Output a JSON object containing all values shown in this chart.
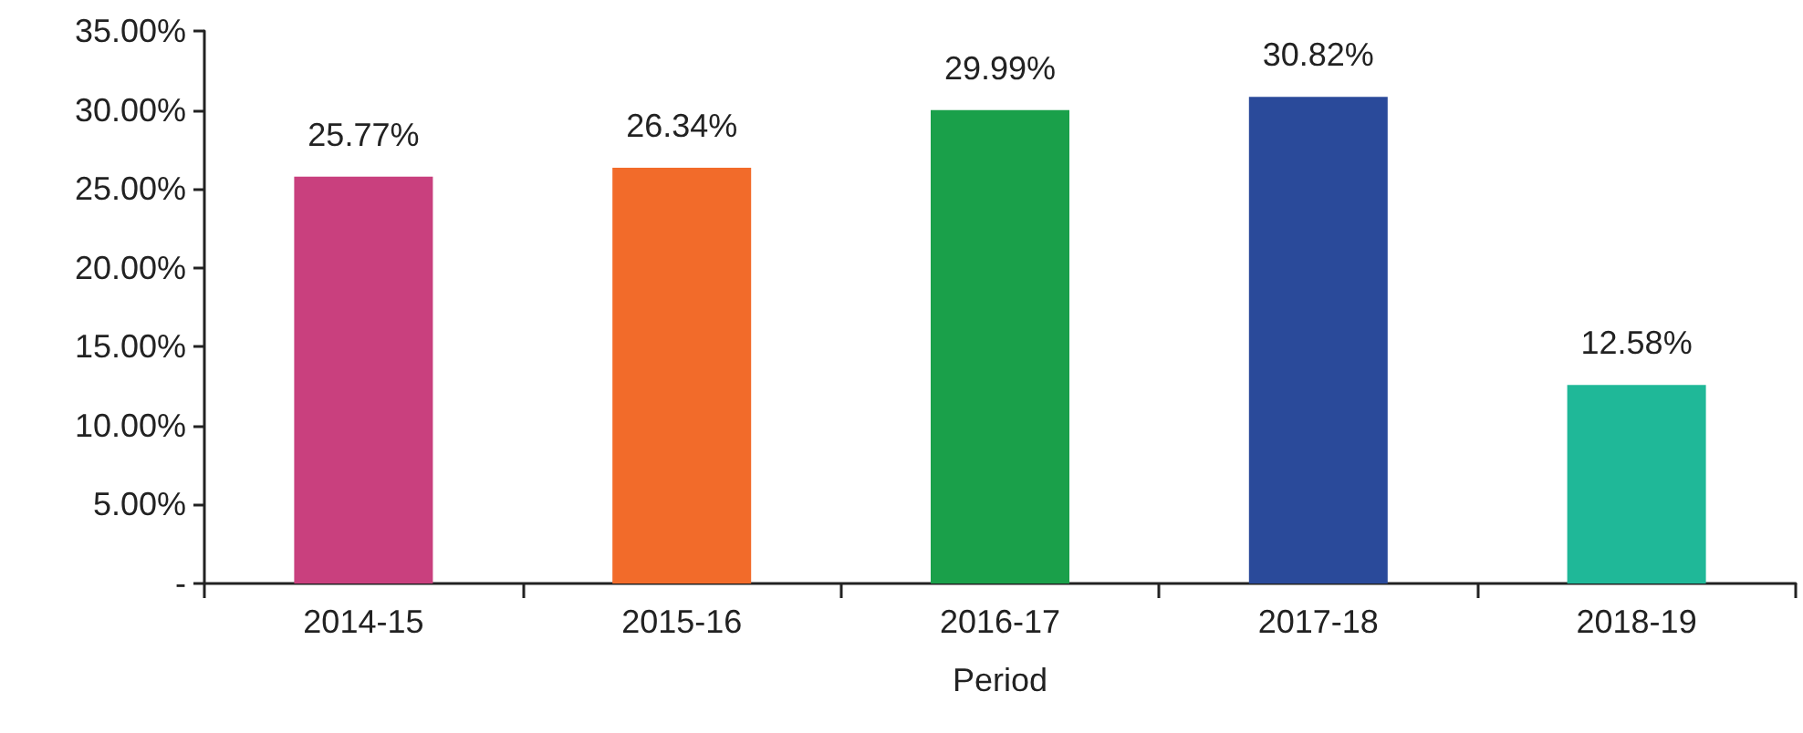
{
  "chart_data": {
    "type": "bar",
    "xlabel": "Period",
    "categories": [
      "2014-15",
      "2015-16",
      "2016-17",
      "2017-18",
      "2018-19"
    ],
    "values": [
      25.77,
      26.34,
      29.99,
      30.82,
      12.58
    ],
    "colors": [
      "#c9407e",
      "#f26b2a",
      "#1aa04a",
      "#2a4a9a",
      "#1fb898"
    ],
    "value_labels": [
      "25.77%",
      "26.34%",
      "29.99%",
      "30.82%",
      "12.58%"
    ],
    "ylim": [
      0,
      35
    ],
    "yticks": [
      {
        "value": 0,
        "label": "-"
      },
      {
        "value": 5,
        "label": "5.00%"
      },
      {
        "value": 10,
        "label": "10.00%"
      },
      {
        "value": 15,
        "label": "15.00%"
      },
      {
        "value": 20,
        "label": "20.00%"
      },
      {
        "value": 25,
        "label": "25.00%"
      },
      {
        "value": 30,
        "label": "30.00%"
      },
      {
        "value": 35,
        "label": "35.00%"
      }
    ],
    "grid": false
  }
}
